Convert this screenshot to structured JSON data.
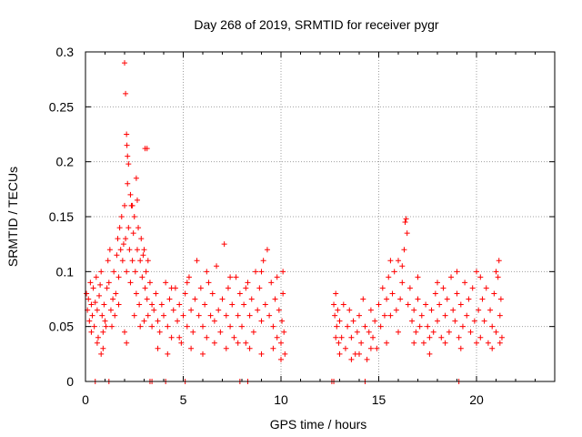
{
  "chart_data": {
    "type": "scatter",
    "title": "Day 268 of 2019, SRMTID for receiver pygr",
    "xlabel": "GPS time / hours",
    "ylabel": "SRMTID / TECUs",
    "xlim": [
      0,
      24
    ],
    "ylim": [
      0,
      0.3
    ],
    "x_ticks": [
      0,
      5,
      10,
      15,
      20
    ],
    "x_tick_labels": [
      "0",
      "5",
      "10",
      "15",
      "20"
    ],
    "y_ticks": [
      0,
      0.05,
      0.1,
      0.15,
      0.2,
      0.25,
      0.3
    ],
    "y_tick_labels": [
      "0",
      "0.05",
      "0.1",
      "0.15",
      "0.2",
      "0.25",
      "0.3"
    ],
    "grid": true,
    "marker": "+",
    "color": "#ff0000",
    "series": [
      {
        "name": "SRMTID",
        "points": [
          [
            0.05,
            0.08
          ],
          [
            0.1,
            0.065
          ],
          [
            0.15,
            0.075
          ],
          [
            0.2,
            0.055
          ],
          [
            0.25,
            0.09
          ],
          [
            0.3,
            0.07
          ],
          [
            0.35,
            0.06
          ],
          [
            0.4,
            0.085
          ],
          [
            0.45,
            0.05
          ],
          [
            0.5,
            0.072
          ],
          [
            0.55,
            0.095
          ],
          [
            0.6,
            0.065
          ],
          [
            0.65,
            0.04
          ],
          [
            0.7,
            0.078
          ],
          [
            0.75,
            0.088
          ],
          [
            0.8,
            0.1
          ],
          [
            0.85,
            0.06
          ],
          [
            0.9,
            0.045
          ],
          [
            0.95,
            0.07
          ],
          [
            1.0,
            0.055
          ],
          [
            0.3,
            0.045
          ],
          [
            0.6,
            0.035
          ],
          [
            0.8,
            0.025
          ],
          [
            0.9,
            0.03
          ],
          [
            1.05,
            0.05
          ],
          [
            1.1,
            0.085
          ],
          [
            1.15,
            0.11
          ],
          [
            1.2,
            0.09
          ],
          [
            1.25,
            0.12
          ],
          [
            1.3,
            0.065
          ],
          [
            1.35,
            0.05
          ],
          [
            1.4,
            0.075
          ],
          [
            1.45,
            0.1
          ],
          [
            1.5,
            0.06
          ],
          [
            1.55,
            0.08
          ],
          [
            1.6,
            0.115
          ],
          [
            1.65,
            0.13
          ],
          [
            1.7,
            0.095
          ],
          [
            1.75,
            0.14
          ],
          [
            1.8,
            0.12
          ],
          [
            1.85,
            0.15
          ],
          [
            1.9,
            0.11
          ],
          [
            1.95,
            0.125
          ],
          [
            2.0,
            0.16
          ],
          [
            2.05,
            0.13
          ],
          [
            2.1,
            0.1
          ],
          [
            2.15,
            0.18
          ],
          [
            2.2,
            0.14
          ],
          [
            2.25,
            0.12
          ],
          [
            2.3,
            0.09
          ],
          [
            2.35,
            0.16
          ],
          [
            2.4,
            0.11
          ],
          [
            2.45,
            0.135
          ],
          [
            2.5,
            0.15
          ],
          [
            2.55,
            0.1
          ],
          [
            2.6,
            0.08
          ],
          [
            2.65,
            0.12
          ],
          [
            2.7,
            0.14
          ],
          [
            2.75,
            0.07
          ],
          [
            2.8,
            0.11
          ],
          [
            2.85,
            0.13
          ],
          [
            2.9,
            0.095
          ],
          [
            2.95,
            0.115
          ],
          [
            3.0,
            0.12
          ],
          [
            3.05,
            0.085
          ],
          [
            3.1,
            0.1
          ],
          [
            3.15,
            0.075
          ],
          [
            3.2,
            0.11
          ],
          [
            3.3,
            0.09
          ],
          [
            3.4,
            0.07
          ],
          [
            2.0,
            0.29
          ],
          [
            2.05,
            0.262
          ],
          [
            2.1,
            0.225
          ],
          [
            2.12,
            0.215
          ],
          [
            2.15,
            0.205
          ],
          [
            2.2,
            0.198
          ],
          [
            2.3,
            0.17
          ],
          [
            2.4,
            0.16
          ],
          [
            2.6,
            0.185
          ],
          [
            2.65,
            0.165
          ],
          [
            3.05,
            0.212
          ],
          [
            3.15,
            0.212
          ],
          [
            2.0,
            0.045
          ],
          [
            2.1,
            0.035
          ],
          [
            2.5,
            0.06
          ],
          [
            2.8,
            0.05
          ],
          [
            3.0,
            0.055
          ],
          [
            3.2,
            0.06
          ],
          [
            3.4,
            0.05
          ],
          [
            1.7,
            0.07
          ],
          [
            3.5,
            0.065
          ],
          [
            3.6,
            0.08
          ],
          [
            3.7,
            0.055
          ],
          [
            3.8,
            0.045
          ],
          [
            3.9,
            0.07
          ],
          [
            4.0,
            0.06
          ],
          [
            4.1,
            0.09
          ],
          [
            4.2,
            0.05
          ],
          [
            4.3,
            0.075
          ],
          [
            4.4,
            0.04
          ],
          [
            4.5,
            0.065
          ],
          [
            4.6,
            0.085
          ],
          [
            4.7,
            0.055
          ],
          [
            4.8,
            0.07
          ],
          [
            4.9,
            0.035
          ],
          [
            5.0,
            0.06
          ],
          [
            5.1,
            0.08
          ],
          [
            5.2,
            0.05
          ],
          [
            5.3,
            0.095
          ],
          [
            5.4,
            0.065
          ],
          [
            5.5,
            0.045
          ],
          [
            5.6,
            0.075
          ],
          [
            5.7,
            0.11
          ],
          [
            5.8,
            0.06
          ],
          [
            5.9,
            0.085
          ],
          [
            6.0,
            0.05
          ],
          [
            6.1,
            0.07
          ],
          [
            6.2,
            0.04
          ],
          [
            6.3,
            0.09
          ],
          [
            6.4,
            0.06
          ],
          [
            6.5,
            0.08
          ],
          [
            6.6,
            0.055
          ],
          [
            6.7,
            0.105
          ],
          [
            6.8,
            0.065
          ],
          [
            6.9,
            0.045
          ],
          [
            7.0,
            0.075
          ],
          [
            7.1,
            0.125
          ],
          [
            7.2,
            0.06
          ],
          [
            7.3,
            0.085
          ],
          [
            7.4,
            0.05
          ],
          [
            7.5,
            0.07
          ],
          [
            7.6,
            0.04
          ],
          [
            7.7,
            0.095
          ],
          [
            7.8,
            0.06
          ],
          [
            7.9,
            0.08
          ],
          [
            8.0,
            0.05
          ],
          [
            8.1,
            0.07
          ],
          [
            8.2,
            0.035
          ],
          [
            8.3,
            0.09
          ],
          [
            8.4,
            0.06
          ],
          [
            8.5,
            0.075
          ],
          [
            8.6,
            0.045
          ],
          [
            8.7,
            0.1
          ],
          [
            8.8,
            0.065
          ],
          [
            8.9,
            0.085
          ],
          [
            9.0,
            0.055
          ],
          [
            9.1,
            0.11
          ],
          [
            9.2,
            0.07
          ],
          [
            9.3,
            0.12
          ],
          [
            9.4,
            0.06
          ],
          [
            9.5,
            0.09
          ],
          [
            9.6,
            0.05
          ],
          [
            9.7,
            0.075
          ],
          [
            9.8,
            0.04
          ],
          [
            9.9,
            0.065
          ],
          [
            10.0,
            0.035
          ],
          [
            10.05,
            0.055
          ],
          [
            10.1,
            0.1
          ],
          [
            10.15,
            0.045
          ],
          [
            10.2,
            0.025
          ],
          [
            3.7,
            0.03
          ],
          [
            4.2,
            0.025
          ],
          [
            4.8,
            0.04
          ],
          [
            5.4,
            0.03
          ],
          [
            6.0,
            0.025
          ],
          [
            6.6,
            0.035
          ],
          [
            7.2,
            0.03
          ],
          [
            7.8,
            0.035
          ],
          [
            8.4,
            0.03
          ],
          [
            9.0,
            0.025
          ],
          [
            9.6,
            0.03
          ],
          [
            10.0,
            0.02
          ],
          [
            4.4,
            0.085
          ],
          [
            5.2,
            0.09
          ],
          [
            6.2,
            0.1
          ],
          [
            7.4,
            0.095
          ],
          [
            8.2,
            0.085
          ],
          [
            9.0,
            0.1
          ],
          [
            9.8,
            0.095
          ],
          [
            10.1,
            0.08
          ],
          [
            12.7,
            0.07
          ],
          [
            12.75,
            0.06
          ],
          [
            12.8,
            0.08
          ],
          [
            12.85,
            0.05
          ],
          [
            12.9,
            0.065
          ],
          [
            12.95,
            0.035
          ],
          [
            13.0,
            0.055
          ],
          [
            13.1,
            0.04
          ],
          [
            13.2,
            0.07
          ],
          [
            13.3,
            0.03
          ],
          [
            13.4,
            0.05
          ],
          [
            13.5,
            0.065
          ],
          [
            13.6,
            0.04
          ],
          [
            13.7,
            0.055
          ],
          [
            13.8,
            0.025
          ],
          [
            13.9,
            0.045
          ],
          [
            14.0,
            0.06
          ],
          [
            14.1,
            0.035
          ],
          [
            14.2,
            0.075
          ],
          [
            14.3,
            0.05
          ],
          [
            14.4,
            0.02
          ],
          [
            14.5,
            0.045
          ],
          [
            14.6,
            0.065
          ],
          [
            14.7,
            0.04
          ],
          [
            14.8,
            0.055
          ],
          [
            14.9,
            0.03
          ],
          [
            15.0,
            0.07
          ],
          [
            15.1,
            0.05
          ],
          [
            15.2,
            0.085
          ],
          [
            15.3,
            0.06
          ],
          [
            15.4,
            0.075
          ],
          [
            15.5,
            0.095
          ],
          [
            15.6,
            0.06
          ],
          [
            15.7,
            0.08
          ],
          [
            15.8,
            0.1
          ],
          [
            15.9,
            0.065
          ],
          [
            16.0,
            0.11
          ],
          [
            16.1,
            0.075
          ],
          [
            16.2,
            0.09
          ],
          [
            16.3,
            0.12
          ],
          [
            16.35,
            0.145
          ],
          [
            16.4,
            0.148
          ],
          [
            16.45,
            0.135
          ],
          [
            16.5,
            0.07
          ],
          [
            16.6,
            0.085
          ],
          [
            16.7,
            0.055
          ],
          [
            16.8,
            0.065
          ],
          [
            16.9,
            0.045
          ],
          [
            17.0,
            0.075
          ],
          [
            17.1,
            0.05
          ],
          [
            17.2,
            0.06
          ],
          [
            17.3,
            0.035
          ],
          [
            17.4,
            0.07
          ],
          [
            17.5,
            0.05
          ],
          [
            17.6,
            0.025
          ],
          [
            17.7,
            0.065
          ],
          [
            17.8,
            0.045
          ],
          [
            17.9,
            0.08
          ],
          [
            18.0,
            0.055
          ],
          [
            18.1,
            0.07
          ],
          [
            18.2,
            0.04
          ],
          [
            18.3,
            0.085
          ],
          [
            18.4,
            0.06
          ],
          [
            18.5,
            0.075
          ],
          [
            18.6,
            0.045
          ],
          [
            18.7,
            0.095
          ],
          [
            18.8,
            0.065
          ],
          [
            18.9,
            0.055
          ],
          [
            19.0,
            0.08
          ],
          [
            19.1,
            0.04
          ],
          [
            19.2,
            0.07
          ],
          [
            19.3,
            0.05
          ],
          [
            19.4,
            0.09
          ],
          [
            19.5,
            0.06
          ],
          [
            19.6,
            0.075
          ],
          [
            19.7,
            0.045
          ],
          [
            19.8,
            0.085
          ],
          [
            19.9,
            0.055
          ],
          [
            20.0,
            0.1
          ],
          [
            20.1,
            0.065
          ],
          [
            20.2,
            0.04
          ],
          [
            20.3,
            0.075
          ],
          [
            20.4,
            0.055
          ],
          [
            20.5,
            0.085
          ],
          [
            20.6,
            0.035
          ],
          [
            20.7,
            0.065
          ],
          [
            20.8,
            0.05
          ],
          [
            20.9,
            0.08
          ],
          [
            21.0,
            0.045
          ],
          [
            21.1,
            0.095
          ],
          [
            21.15,
            0.11
          ],
          [
            21.2,
            0.06
          ],
          [
            21.25,
            0.075
          ],
          [
            21.3,
            0.04
          ],
          [
            12.8,
            0.04
          ],
          [
            13.0,
            0.025
          ],
          [
            13.6,
            0.02
          ],
          [
            14.0,
            0.025
          ],
          [
            14.6,
            0.03
          ],
          [
            15.4,
            0.035
          ],
          [
            16.0,
            0.045
          ],
          [
            16.8,
            0.035
          ],
          [
            17.6,
            0.04
          ],
          [
            18.4,
            0.035
          ],
          [
            19.2,
            0.03
          ],
          [
            20.0,
            0.035
          ],
          [
            20.8,
            0.03
          ],
          [
            21.2,
            0.035
          ],
          [
            15.6,
            0.11
          ],
          [
            16.2,
            0.105
          ],
          [
            17.0,
            0.095
          ],
          [
            18.0,
            0.09
          ],
          [
            19.0,
            0.1
          ],
          [
            20.2,
            0.095
          ],
          [
            21.0,
            0.1
          ],
          [
            0.5,
            0.0
          ],
          [
            1.2,
            0.0
          ],
          [
            3.3,
            0.0
          ],
          [
            3.4,
            0.0
          ],
          [
            4.1,
            0.0
          ],
          [
            5.1,
            0.0
          ],
          [
            7.9,
            0.0
          ],
          [
            8.3,
            0.0
          ],
          [
            12.6,
            0.0
          ],
          [
            12.7,
            0.0
          ],
          [
            14.3,
            0.0
          ],
          [
            19.1,
            0.0
          ]
        ]
      }
    ]
  }
}
